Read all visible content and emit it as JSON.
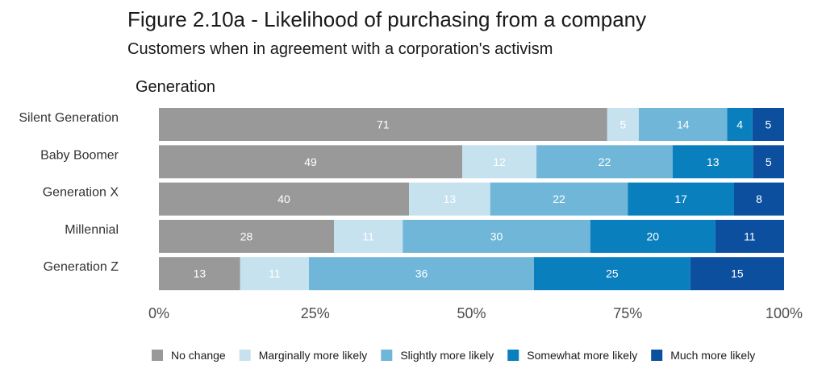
{
  "chart_data": {
    "type": "bar",
    "orientation": "horizontal",
    "stacked": "percent",
    "title": "Figure 2.10a - Likelihood of purchasing from a company",
    "subtitle": "Customers when in agreement with a corporation's activism",
    "facet_label": "Generation",
    "categories": [
      "Silent Generation",
      "Baby Boomer",
      "Generation X",
      "Millennial",
      "Generation Z"
    ],
    "series": [
      {
        "name": "No change",
        "color": "#999999",
        "values": [
          71,
          49,
          40,
          28,
          13
        ]
      },
      {
        "name": "Marginally more likely",
        "color": "#c6e2ef",
        "values": [
          5,
          12,
          13,
          11,
          11
        ]
      },
      {
        "name": "Slightly more likely",
        "color": "#6fb6d9",
        "values": [
          14,
          22,
          22,
          30,
          36
        ]
      },
      {
        "name": "Somewhat more likely",
        "color": "#0a7fbd",
        "values": [
          4,
          13,
          17,
          20,
          25
        ]
      },
      {
        "name": "Much more likely",
        "color": "#0b4f9e",
        "values": [
          5,
          5,
          8,
          11,
          15
        ]
      }
    ],
    "xlim": [
      0,
      100
    ],
    "xticks": [
      "0%",
      "25%",
      "50%",
      "75%",
      "100%"
    ],
    "grid": false,
    "legend_position": "bottom"
  }
}
